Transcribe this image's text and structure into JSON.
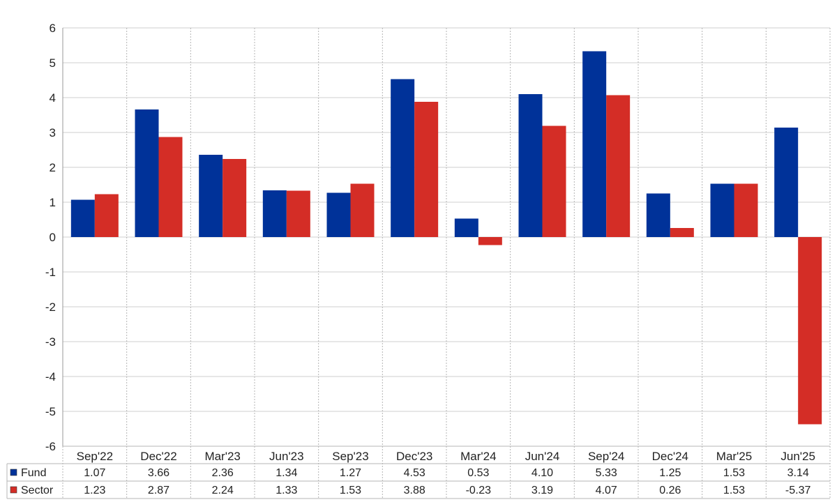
{
  "chart_data": {
    "type": "bar",
    "categories": [
      "Sep'22",
      "Dec'22",
      "Mar'23",
      "Jun'23",
      "Sep'23",
      "Dec'23",
      "Mar'24",
      "Jun'24",
      "Sep'24",
      "Dec'24",
      "Mar'25",
      "Jun'25"
    ],
    "series": [
      {
        "name": "Fund",
        "color": "#003299",
        "values": [
          1.07,
          3.66,
          2.36,
          1.34,
          1.27,
          4.53,
          0.53,
          4.1,
          5.33,
          1.25,
          1.53,
          3.14
        ],
        "labels": [
          "1.07",
          "3.66",
          "2.36",
          "1.34",
          "1.27",
          "4.53",
          "0.53",
          "4.10",
          "5.33",
          "1.25",
          "1.53",
          "3.14"
        ]
      },
      {
        "name": "Sector",
        "color": "#D42D26",
        "values": [
          1.23,
          2.87,
          2.24,
          1.33,
          1.53,
          3.88,
          -0.23,
          3.19,
          4.07,
          0.26,
          1.53,
          -5.37
        ],
        "labels": [
          "1.23",
          "2.87",
          "2.24",
          "1.33",
          "1.53",
          "3.88",
          "-0.23",
          "3.19",
          "4.07",
          "0.26",
          "1.53",
          "-5.37"
        ]
      }
    ],
    "ylim": [
      -6,
      6
    ],
    "yticks": [
      "6",
      "5",
      "4",
      "3",
      "2",
      "1",
      "0",
      "-1",
      "-2",
      "-3",
      "-4",
      "-5",
      "-6"
    ],
    "negative_label_color": "#FF0000",
    "grid": true,
    "legend": "data table below chart"
  }
}
